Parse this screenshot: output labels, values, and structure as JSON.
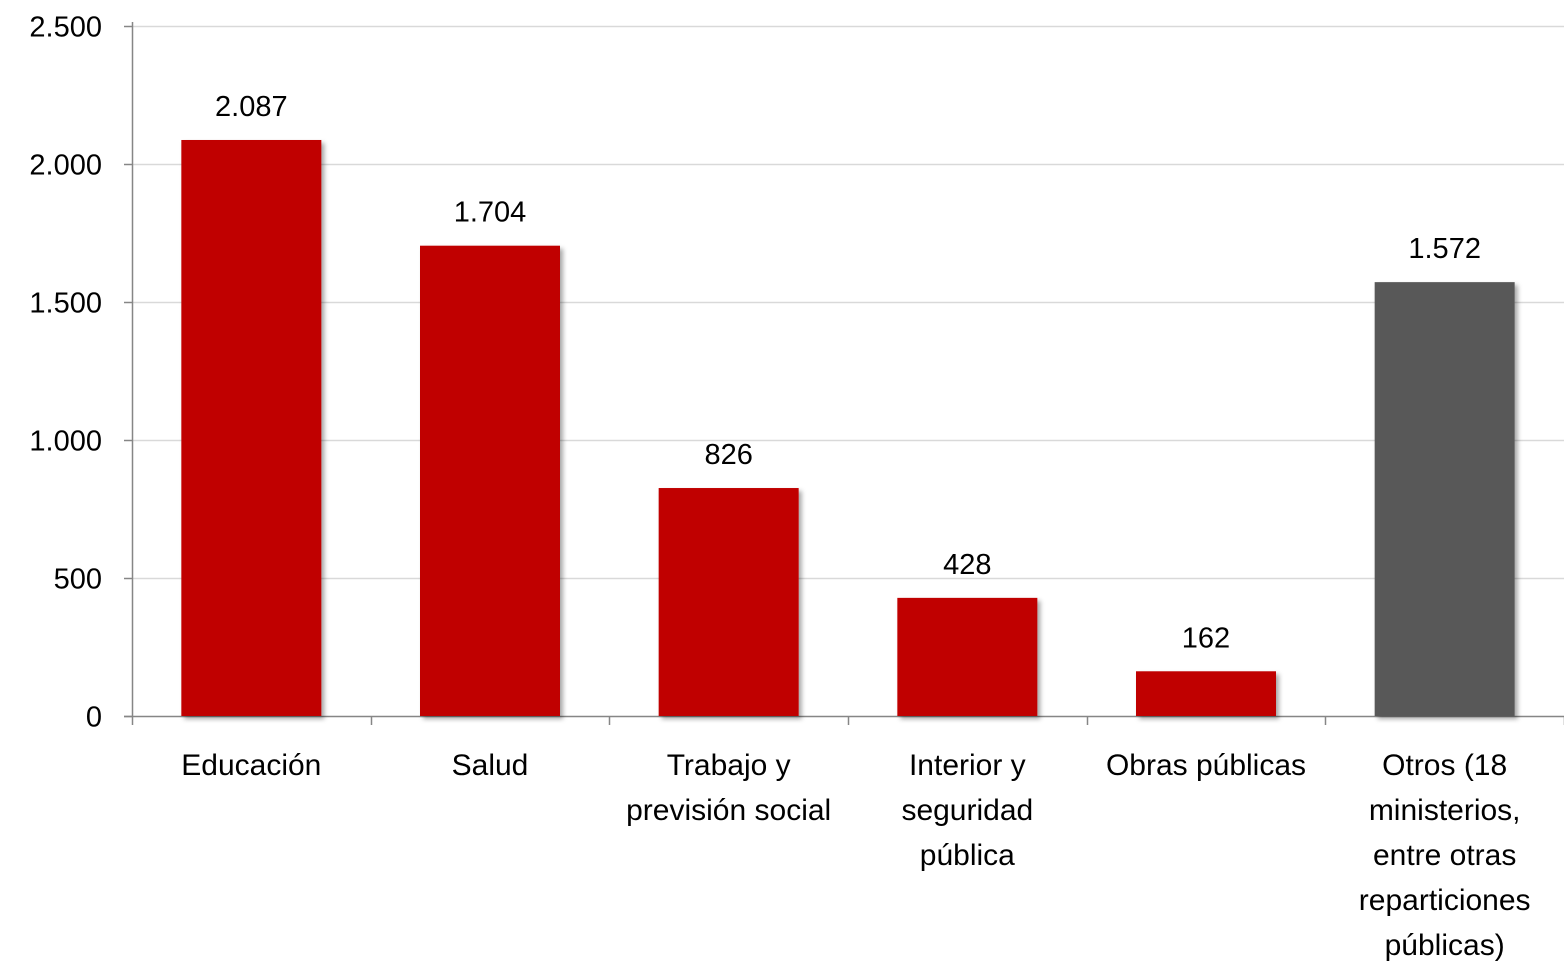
{
  "chart_data": {
    "type": "bar",
    "title": "",
    "xlabel": "",
    "ylabel": "",
    "categories": [
      "Educación",
      "Salud",
      "Trabajo y previsión social",
      "Interior y seguridad pública",
      "Obras públicas",
      "Otros (18 ministerios, entre otras reparticiones públicas)"
    ],
    "category_lines": [
      [
        "Educación"
      ],
      [
        "Salud"
      ],
      [
        "Trabajo y",
        "previsión social"
      ],
      [
        "Interior y",
        "seguridad",
        "pública"
      ],
      [
        "Obras públicas"
      ],
      [
        "Otros (18",
        "ministerios,",
        "entre otras",
        "reparticiones",
        "públicas)"
      ]
    ],
    "values": [
      2087,
      1704,
      826,
      428,
      162,
      1572
    ],
    "value_labels": [
      "2.087",
      "1.704",
      "826",
      "428",
      "162",
      "1.572"
    ],
    "bar_colors": [
      "#c00000",
      "#c00000",
      "#c00000",
      "#c00000",
      "#c00000",
      "#595959"
    ],
    "ylim": [
      0,
      2500
    ],
    "yticks": [
      0,
      500,
      1000,
      1500,
      2000,
      2500
    ],
    "ytick_labels": [
      "0",
      "500",
      "1.000",
      "1.500",
      "2.000",
      "2.500"
    ],
    "grid": true,
    "legend": "none"
  }
}
